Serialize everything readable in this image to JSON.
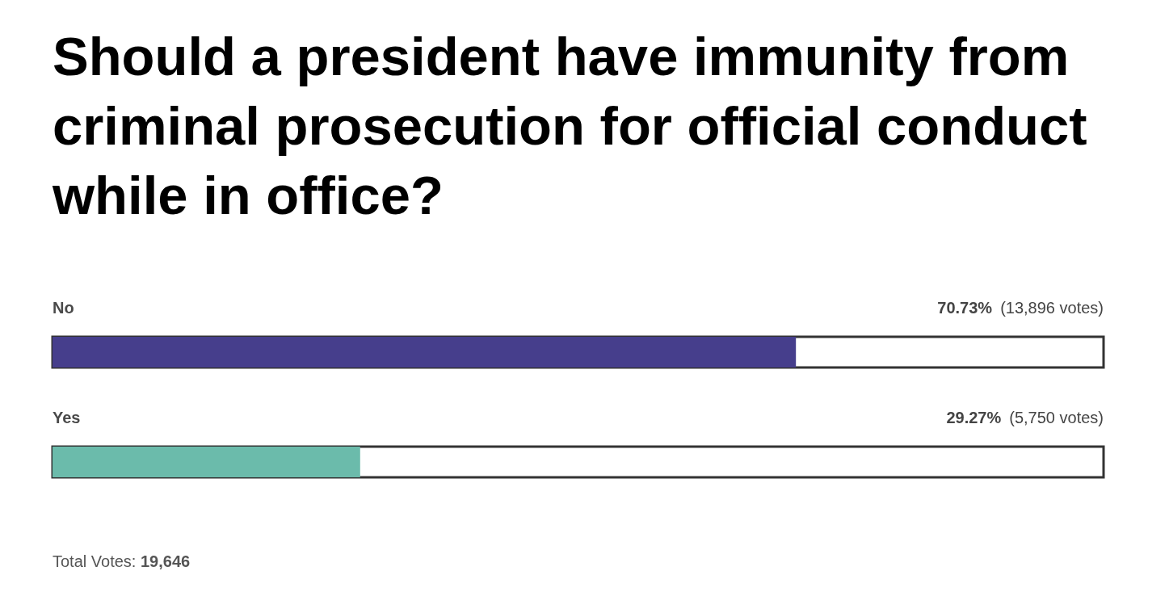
{
  "chart_data": {
    "type": "bar",
    "orientation": "horizontal",
    "title": "Should a president have immunity from criminal prosecution for official conduct while in office?",
    "categories": [
      "No",
      "Yes"
    ],
    "values": [
      70.73,
      29.27
    ],
    "colors": [
      "#463e8c",
      "#6bbbab"
    ],
    "xlim": [
      0,
      100
    ],
    "tick_labels": "y",
    "value_labels": [
      "70.73% (13,896 votes)",
      "29.27% (5,750 votes)"
    ],
    "annotations": [
      "Total Votes: 19,646"
    ]
  }
}
